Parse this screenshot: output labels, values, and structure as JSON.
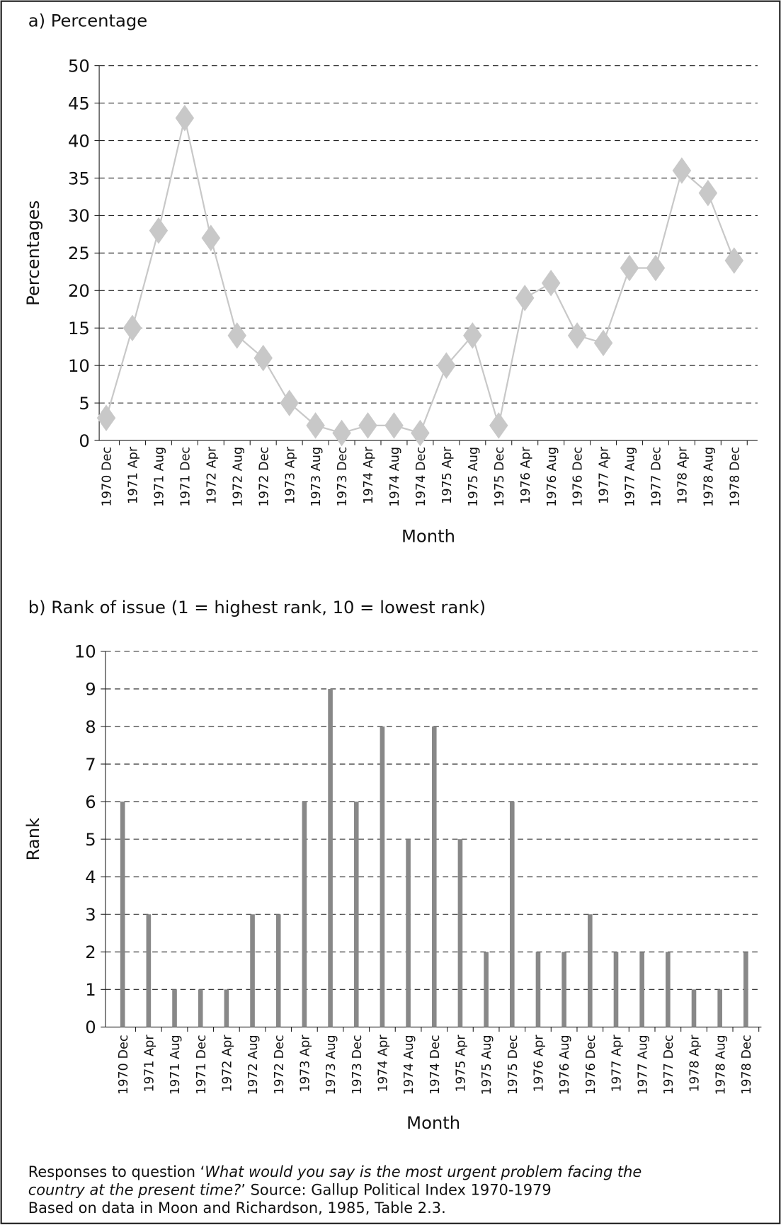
{
  "chart_data": [
    {
      "type": "line",
      "title": "a) Percentage",
      "x_label": "Month",
      "y_label": "Percentages",
      "categories": [
        "1970 Dec",
        "1971 Apr",
        "1971 Aug",
        "1971 Dec",
        "1972 Apr",
        "1972 Aug",
        "1972 Dec",
        "1973 Apr",
        "1973 Aug",
        "1973 Dec",
        "1974 Apr",
        "1974 Aug",
        "1974 Dec",
        "1975 Apr",
        "1975 Aug",
        "1975 Dec",
        "1976 Apr",
        "1976 Aug",
        "1976 Dec",
        "1977 Apr",
        "1977 Aug",
        "1977 Dec",
        "1978 Apr",
        "1978 Aug",
        "1978 Dec"
      ],
      "values": [
        3,
        15,
        28,
        43,
        27,
        14,
        11,
        5,
        2,
        1,
        2,
        2,
        1,
        10,
        14,
        2,
        19,
        21,
        14,
        13,
        23,
        23,
        36,
        33,
        24
      ],
      "color": "#c8c8c8",
      "ylim": [
        0,
        50
      ],
      "yticks": [
        0,
        5,
        10,
        15,
        20,
        25,
        30,
        35,
        40,
        45,
        50
      ],
      "grid": true
    },
    {
      "type": "bar",
      "title": "b) Rank of issue",
      "subtitle": "(1 = highest rank, 10 = lowest rank)",
      "x_label": "Month",
      "y_label": "Rank",
      "categories": [
        "1970 Dec",
        "1971 Apr",
        "1971 Aug",
        "1971 Dec",
        "1972 Apr",
        "1972 Aug",
        "1972 Dec",
        "1973 Apr",
        "1973 Aug",
        "1973 Dec",
        "1974 Apr",
        "1974 Aug",
        "1974 Dec",
        "1975 Apr",
        "1975 Aug",
        "1975 Dec",
        "1976 Apr",
        "1976 Aug",
        "1976 Dec",
        "1977 Apr",
        "1977 Aug",
        "1977 Dec",
        "1978 Apr",
        "1978 Aug",
        "1978 Dec"
      ],
      "values": [
        6,
        3,
        1,
        1,
        1,
        3,
        3,
        6,
        9,
        6,
        8,
        5,
        8,
        5,
        2,
        6,
        2,
        2,
        3,
        2,
        2,
        2,
        1,
        1,
        2
      ],
      "color": "#888888",
      "ylim": [
        0,
        10
      ],
      "yticks": [
        0,
        1,
        2,
        3,
        4,
        5,
        6,
        7,
        8,
        9,
        10
      ],
      "grid": true
    }
  ],
  "note": {
    "segments": [
      "Responses to question ‘",
      "What would you say is the most urgent problem facing the",
      "country at the present time?",
      "’ Source: Gallup Political Index 1970-1979",
      "Based on data in Moon and Richardson, 1985, Table 2.3."
    ]
  }
}
